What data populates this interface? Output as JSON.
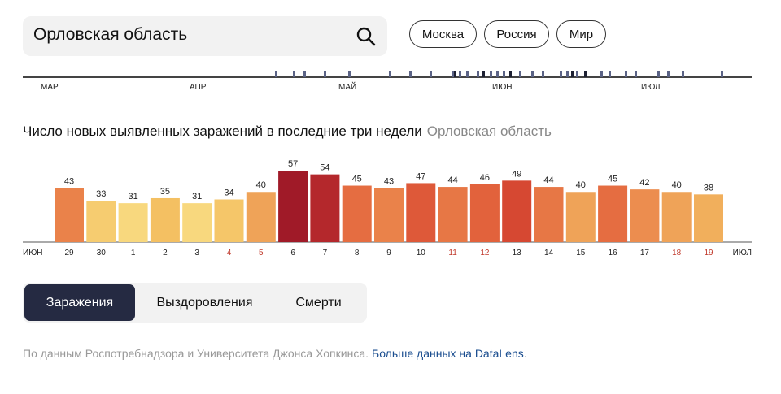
{
  "search": {
    "value": "Орловская область"
  },
  "region_pills": [
    "Москва",
    "Россия",
    "Мир"
  ],
  "timeline": {
    "months": [
      "МАР",
      "АПР",
      "МАЙ",
      "ИЮН",
      "ИЮЛ"
    ],
    "colors": {
      "axis": "#444444",
      "mark": "#5b6386",
      "mark_dark": "#1d2133"
    }
  },
  "chart_title": "Число новых выявленных заражений в последние три недели",
  "chart_region": "Орловская область",
  "chart_data": {
    "type": "bar",
    "categories": [
      "29",
      "30",
      "1",
      "2",
      "3",
      "4",
      "5",
      "6",
      "7",
      "8",
      "9",
      "10",
      "11",
      "12",
      "13",
      "14",
      "15",
      "16",
      "17",
      "18",
      "19"
    ],
    "values": [
      43,
      33,
      31,
      35,
      31,
      34,
      40,
      57,
      54,
      45,
      43,
      47,
      44,
      46,
      49,
      44,
      40,
      45,
      42,
      40,
      38
    ],
    "weekend_categories": [
      "4",
      "5",
      "11",
      "12",
      "18",
      "19"
    ],
    "start_month_label": "ИЮН",
    "end_month_label": "ИЮЛ",
    "title": "Число новых выявленных заражений в последние три недели",
    "colors": {
      "label": "#222222",
      "weekend_label": "#c0392b",
      "axis": "#555555"
    }
  },
  "tabs": [
    {
      "label": "Заражения",
      "active": true
    },
    {
      "label": "Выздоровления",
      "active": false
    },
    {
      "label": "Смерти",
      "active": false
    }
  ],
  "footer": {
    "source_text": "По данным Роспотребнадзора и Университета Джонса Хопкинса.",
    "link_text": "Больше данных на DataLens",
    "link_suffix": "."
  }
}
